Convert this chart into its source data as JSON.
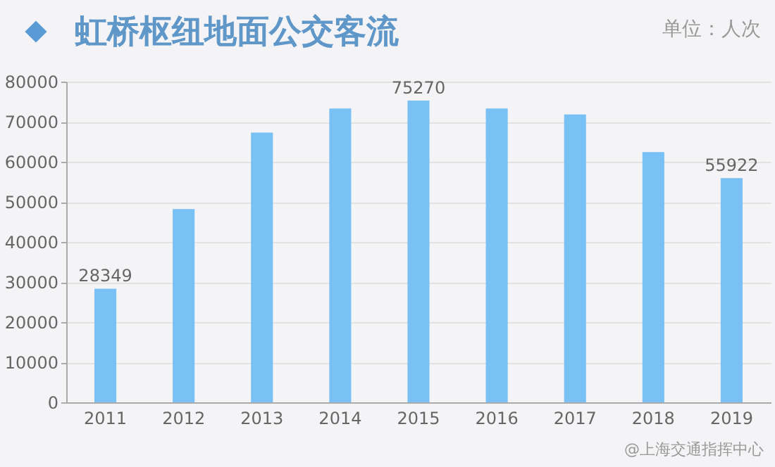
{
  "chart_data": {
    "type": "bar",
    "title": "虹桥枢纽地面公交客流",
    "annotations": [
      "单位：人次",
      "@上海交通指挥中心"
    ],
    "categories": [
      "2011",
      "2012",
      "2013",
      "2014",
      "2015",
      "2016",
      "2017",
      "2018",
      "2019"
    ],
    "values": [
      28349,
      48200,
      67300,
      73300,
      75270,
      73300,
      71800,
      62400,
      55922
    ],
    "value_labels": [
      "28349",
      null,
      null,
      null,
      "75270",
      null,
      null,
      null,
      "55922"
    ],
    "color": "#79c0f4",
    "ylim": [
      0,
      80000
    ],
    "yticks": [
      0,
      10000,
      20000,
      30000,
      40000,
      50000,
      60000,
      70000,
      80000
    ],
    "grid": "y"
  }
}
